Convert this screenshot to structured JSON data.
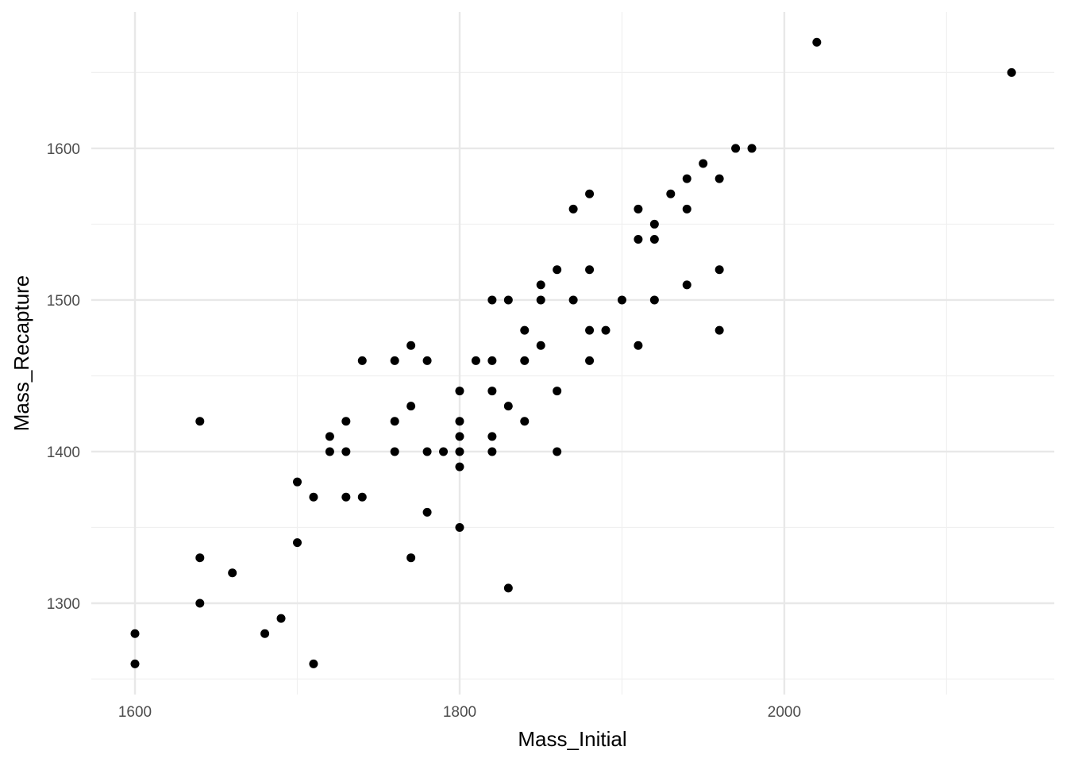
{
  "chart_data": {
    "type": "scatter",
    "x_label": "Mass_Initial",
    "y_label": "Mass_Recapture",
    "xlim": [
      1573.1,
      2166.3
    ],
    "ylim": [
      1239.8,
      1690
    ],
    "xticks": [
      1600,
      1800,
      2000
    ],
    "yticks": [
      1300,
      1400,
      1500,
      1600
    ],
    "xminor": [
      1700,
      1900,
      2100
    ],
    "yminor": [
      1250,
      1350,
      1450,
      1550,
      1650
    ],
    "grid": true,
    "color": "#000000",
    "x": [
      2020,
      2140,
      1970,
      1980,
      1950,
      1940,
      1960,
      1930,
      1880,
      1870,
      1910,
      1940,
      1920,
      1910,
      1920,
      1860,
      1880,
      1960,
      1850,
      1940,
      1820,
      1830,
      1850,
      1870,
      1900,
      1920,
      1840,
      1880,
      1890,
      1960,
      1770,
      1850,
      1910,
      1740,
      1760,
      1780,
      1810,
      1820,
      1840,
      1880,
      1800,
      1820,
      1860,
      1770,
      1830,
      1640,
      1730,
      1760,
      1800,
      1840,
      1720,
      1800,
      1820,
      1720,
      1730,
      1760,
      1780,
      1790,
      1800,
      1820,
      1860,
      1800,
      1700,
      1710,
      1730,
      1740,
      1780,
      1800,
      1700,
      1640,
      1770,
      1660,
      1830,
      1640,
      1690,
      1600,
      1680,
      1600,
      1710
    ],
    "y": [
      1670,
      1650,
      1600,
      1600,
      1590,
      1580,
      1580,
      1570,
      1570,
      1560,
      1560,
      1560,
      1550,
      1540,
      1540,
      1520,
      1520,
      1520,
      1510,
      1510,
      1500,
      1500,
      1500,
      1500,
      1500,
      1500,
      1480,
      1480,
      1480,
      1480,
      1470,
      1470,
      1470,
      1460,
      1460,
      1460,
      1460,
      1460,
      1460,
      1460,
      1440,
      1440,
      1440,
      1430,
      1430,
      1420,
      1420,
      1420,
      1420,
      1420,
      1410,
      1410,
      1410,
      1400,
      1400,
      1400,
      1400,
      1400,
      1400,
      1400,
      1400,
      1390,
      1380,
      1370,
      1370,
      1370,
      1360,
      1350,
      1340,
      1330,
      1330,
      1320,
      1310,
      1300,
      1290,
      1280,
      1280,
      1260,
      1260
    ]
  }
}
